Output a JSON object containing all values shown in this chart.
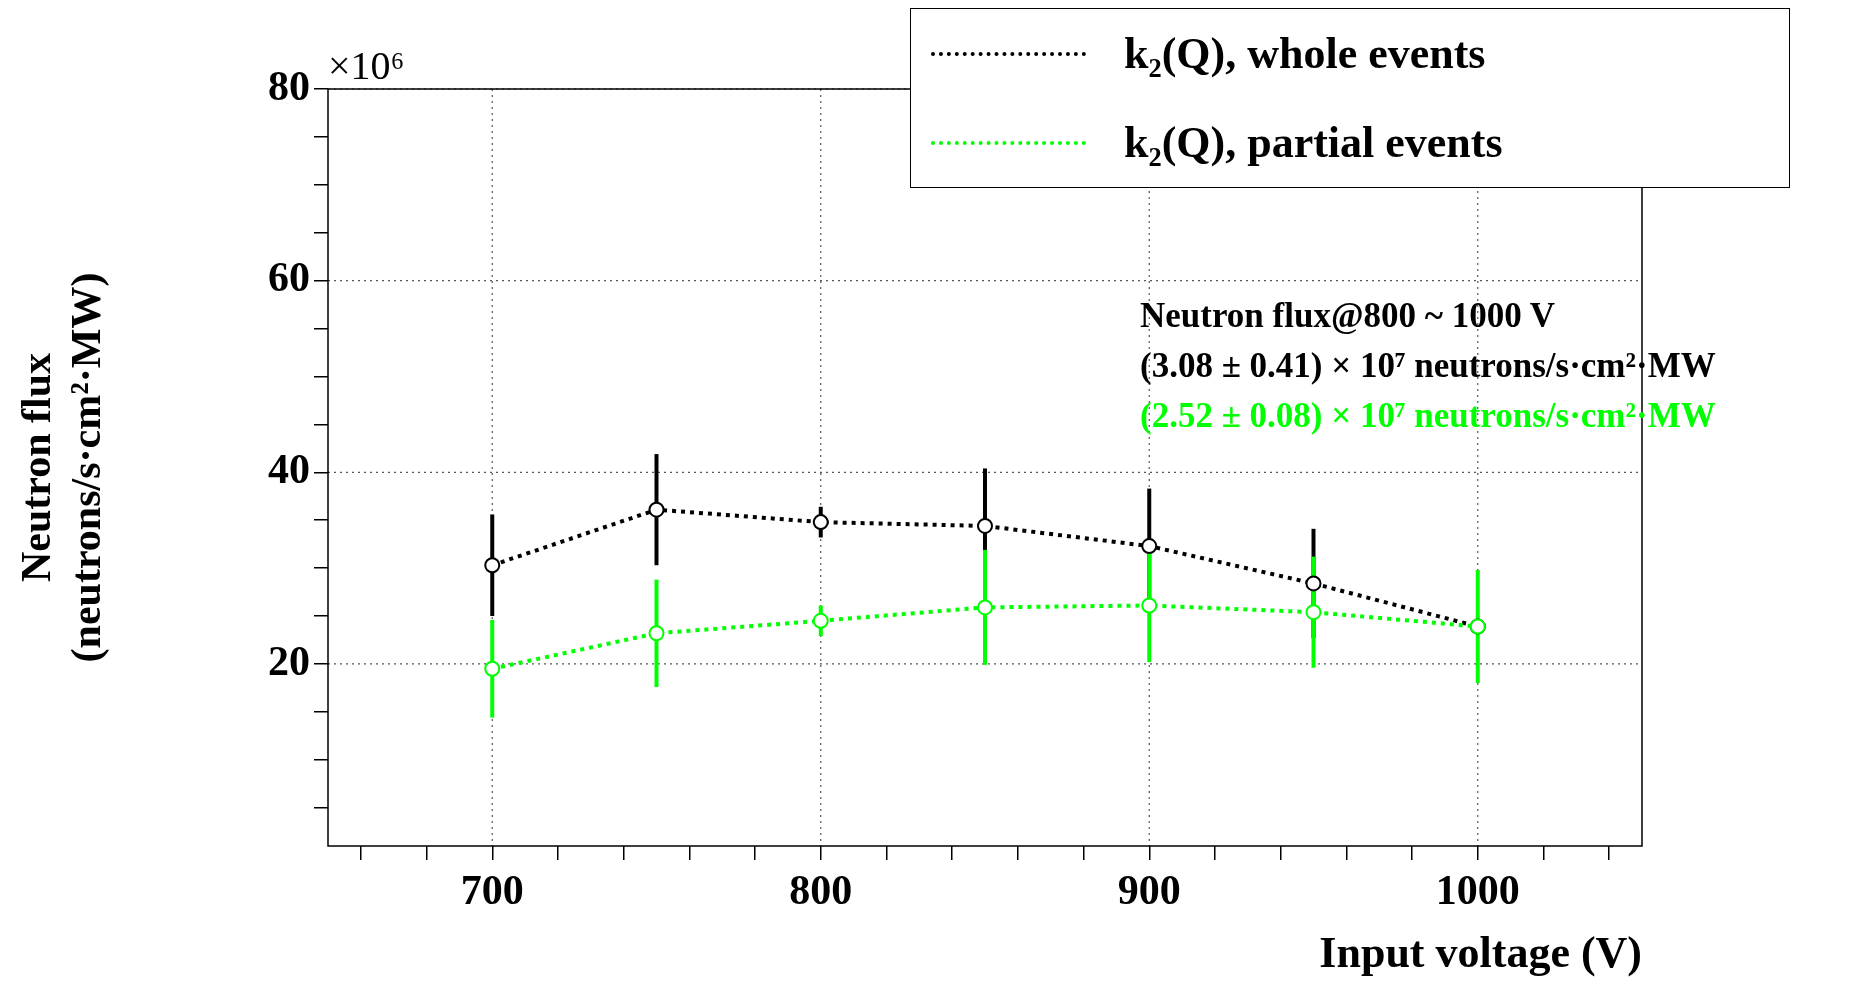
{
  "chart_data": {
    "type": "line",
    "xlabel": "Input voltage (V)",
    "ylabel": "Neutron flux\n(neutrons/s·cm²·MW)",
    "x": [
      700,
      750,
      800,
      850,
      900,
      950,
      1000
    ],
    "series": [
      {
        "name": "k₂(Q), whole events",
        "color": "#000000",
        "values": [
          30.3,
          36.1,
          34.8,
          34.4,
          32.3,
          28.4,
          23.9
        ],
        "errors": [
          5.3,
          5.8,
          1.6,
          6,
          6,
          5.7,
          null
        ]
      },
      {
        "name": "k₂(Q), partial events",
        "color": "#00ff00",
        "values": [
          19.5,
          23.2,
          24.5,
          25.9,
          26.1,
          25.4,
          23.9
        ],
        "errors": [
          5.1,
          5.6,
          1.6,
          6,
          5.9,
          5.8,
          5.9
        ]
      }
    ],
    "xlim": [
      650,
      1050
    ],
    "xticks": [
      {
        "value": 660,
        "label": null
      },
      {
        "value": 680,
        "label": null
      },
      700,
      {
        "value": 720,
        "label": null
      },
      {
        "value": 740,
        "label": null
      },
      {
        "value": 760,
        "label": null
      },
      {
        "value": 780,
        "label": null
      },
      800,
      {
        "value": 820,
        "label": null
      },
      {
        "value": 840,
        "label": null
      },
      {
        "value": 860,
        "label": null
      },
      {
        "value": 880,
        "label": null
      },
      900,
      {
        "value": 920,
        "label": null
      },
      {
        "value": 940,
        "label": null
      },
      {
        "value": 960,
        "label": null
      },
      {
        "value": 980,
        "label": null
      },
      1000,
      {
        "value": 1020,
        "label": null
      },
      {
        "value": 1040,
        "label": null
      }
    ],
    "ylim": [
      1,
      80
    ],
    "yticks": [
      {
        "value": 5,
        "label": null
      },
      {
        "value": 10,
        "label": null
      },
      {
        "value": 15,
        "label": null
      },
      20,
      {
        "value": 25,
        "label": null
      },
      {
        "value": 30,
        "label": null
      },
      {
        "value": 35,
        "label": null
      },
      40,
      {
        "value": 45,
        "label": null
      },
      {
        "value": 50,
        "label": null
      },
      {
        "value": 55,
        "label": null
      },
      60,
      {
        "value": 65,
        "label": null
      },
      {
        "value": 70,
        "label": null
      },
      {
        "value": 75,
        "label": null
      },
      80
    ],
    "annotations": [
      "×10⁶",
      "Neutron flux@800 ~ 1000 V",
      "(3.08 ± 0.41) × 10⁷ neutrons/s·cm²·MW",
      "(2.52 ± 0.08) × 10⁷ neutrons/s·cm²·MW"
    ],
    "grid": true,
    "legend": "top right",
    "marker": "circle",
    "line_style": "dotted"
  }
}
